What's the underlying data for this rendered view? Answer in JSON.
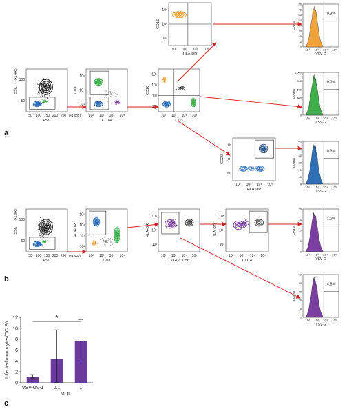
{
  "panel_labels": [
    "a",
    "b",
    "c"
  ],
  "colors": {
    "gate_black": "#111111",
    "monocyte_blue": "#2f6fb8",
    "t_cell_green": "#3fae4a",
    "nk_orange": "#f1a33a",
    "dc_purple": "#7a3fa0",
    "bar_fill": "#6a3b9c",
    "arrow_red": "#d22020"
  },
  "row_a": {
    "plots": [
      {
        "id": "a1",
        "xlabel": "FSC",
        "ylabel": "SSC",
        "xunit": "(×1,000)",
        "yunit": "(×1,000)",
        "xticks": [
          "50",
          "100",
          "150",
          "200",
          "250"
        ],
        "yticks": [
          "50",
          "100"
        ]
      },
      {
        "id": "a2",
        "xlabel": "CD14",
        "ylabel": "CD3",
        "xticks": [
          "10²",
          "10³",
          "10⁴",
          "10⁵"
        ],
        "yticks": [
          "10³",
          "10⁴",
          "10⁵"
        ]
      },
      {
        "id": "a3",
        "xlabel": "CD3",
        "ylabel": "CD16",
        "xticks": [
          "10²",
          "10³",
          "10⁴",
          "10⁵"
        ],
        "yticks": [
          "10²",
          "10³",
          "10⁴",
          "10⁵"
        ]
      },
      {
        "id": "a4",
        "xlabel": "HLA-DR",
        "ylabel": "CD16",
        "xticks": [
          "10²",
          "10³",
          "10⁴",
          "10⁵"
        ],
        "yticks": [
          "10³",
          "10⁴",
          "10⁵"
        ]
      },
      {
        "id": "a5",
        "xlabel": "HLA-DR",
        "ylabel": "CD20",
        "xticks": [
          "10²",
          "10³",
          "10⁴",
          "10⁵"
        ],
        "yticks": [
          "10³",
          "10⁴",
          "10⁵"
        ]
      }
    ],
    "histograms": [
      {
        "id": "ha1",
        "percent": "0.3%",
        "color": "#f1a33a",
        "xlabel": "VSV-G",
        "ylabel": "Counts",
        "yticks": [
          "0",
          "10",
          "20",
          "30",
          "40",
          "50",
          "60",
          "70",
          "80"
        ]
      },
      {
        "id": "ha2",
        "percent": "0.0%",
        "color": "#3fae4a",
        "xlabel": "VSV-G",
        "ylabel": "Counts",
        "yticks": [
          "0",
          "200",
          "400",
          "600",
          "800",
          "1,000"
        ]
      },
      {
        "id": "ha3",
        "percent": "0.3%",
        "color": "#2f6fb8",
        "xlabel": "VSV-G",
        "ylabel": "Counts",
        "yticks": [
          "0",
          "10",
          "20",
          "30",
          "40",
          "50",
          "60"
        ]
      }
    ]
  },
  "row_b": {
    "plots": [
      {
        "id": "b1",
        "xlabel": "FSC",
        "ylabel": "SSC",
        "xunit": "(×1,000)",
        "yunit": "(×1,000)",
        "xticks": [
          "50",
          "100",
          "150",
          "200",
          "250"
        ],
        "yticks": [
          "50",
          "100"
        ]
      },
      {
        "id": "b2",
        "xlabel": "CD3",
        "ylabel": "HLA-DR",
        "xticks": [
          "10²",
          "10³",
          "10⁴",
          "10⁵"
        ],
        "yticks": [
          "10²",
          "10³",
          "10⁴",
          "10⁵"
        ]
      },
      {
        "id": "b3",
        "xlabel": "CD20/CD56",
        "ylabel": "HLA-DR",
        "xticks": [
          "10²",
          "10³",
          "10⁴",
          "10⁵"
        ],
        "yticks": [
          "10³",
          "10⁴",
          "10⁵"
        ]
      },
      {
        "id": "b4",
        "xlabel": "CD14",
        "ylabel": "HLA-DR",
        "xticks": [
          "10²",
          "10³",
          "10⁴",
          "10⁵"
        ],
        "yticks": [
          "10³",
          "10⁴",
          "10⁵"
        ]
      }
    ],
    "histograms": [
      {
        "id": "hb1",
        "percent": "1.0%",
        "color": "#7a3fa0",
        "xlabel": "VSV-G",
        "ylabel": "Counts",
        "yticks": [
          "0",
          "5",
          "10",
          "15",
          "20"
        ]
      },
      {
        "id": "hb2",
        "percent": "4.8%",
        "color": "#7a3fa0",
        "xlabel": "VSV-G",
        "ylabel": "Counts",
        "yticks": [
          "0",
          "10",
          "20",
          "30",
          "40",
          "50"
        ]
      }
    ],
    "hist_xticks": [
      "10²",
      "10³",
      "10⁴",
      "10⁵"
    ]
  },
  "chart_data": {
    "type": "bar",
    "categories": [
      "VSV-UV-1",
      "0.1",
      "1"
    ],
    "values": [
      1.1,
      4.4,
      7.6
    ],
    "error_upper": [
      1.5,
      9.7,
      11.6
    ],
    "error_lower": [
      0.9,
      0.1,
      3.6
    ],
    "xlabel": "MOI",
    "ylabel": "Infected monocytes/DC, %",
    "yticks": [
      "0",
      "2",
      "4",
      "6",
      "8",
      "10",
      "12"
    ],
    "ylim": [
      0,
      12
    ],
    "significance_marker": "*",
    "significance_between": [
      "VSV-UV-1",
      "1"
    ],
    "color": "#6a3b9c"
  }
}
